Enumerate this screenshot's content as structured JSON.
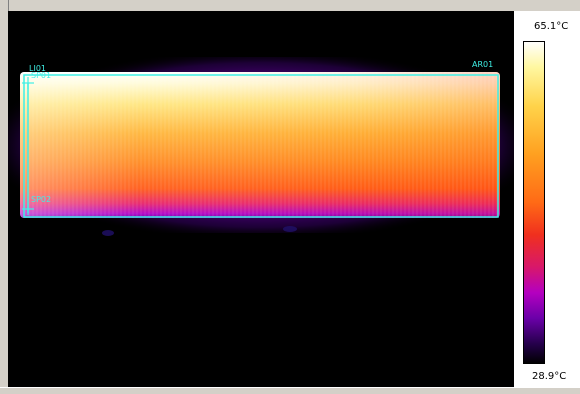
{
  "overlay": {
    "line_label": "LI01",
    "spot_top_label": "SP01",
    "spot_bottom_label": "SP02",
    "area_label": "AR01",
    "overlay_color": "#3ff0e6"
  },
  "scale": {
    "max_label": "65.1°C",
    "min_label": "28.9°C",
    "max_value": 65.1,
    "min_value": 28.9,
    "palette": [
      "#ffffff",
      "#fff7a0",
      "#ffd34a",
      "#ffa020",
      "#ff6a16",
      "#f0301e",
      "#d8186a",
      "#b400c0",
      "#6a00a8",
      "#24004a",
      "#000000"
    ]
  },
  "icons": {
    "spot_marker": "crosshair-icon"
  }
}
